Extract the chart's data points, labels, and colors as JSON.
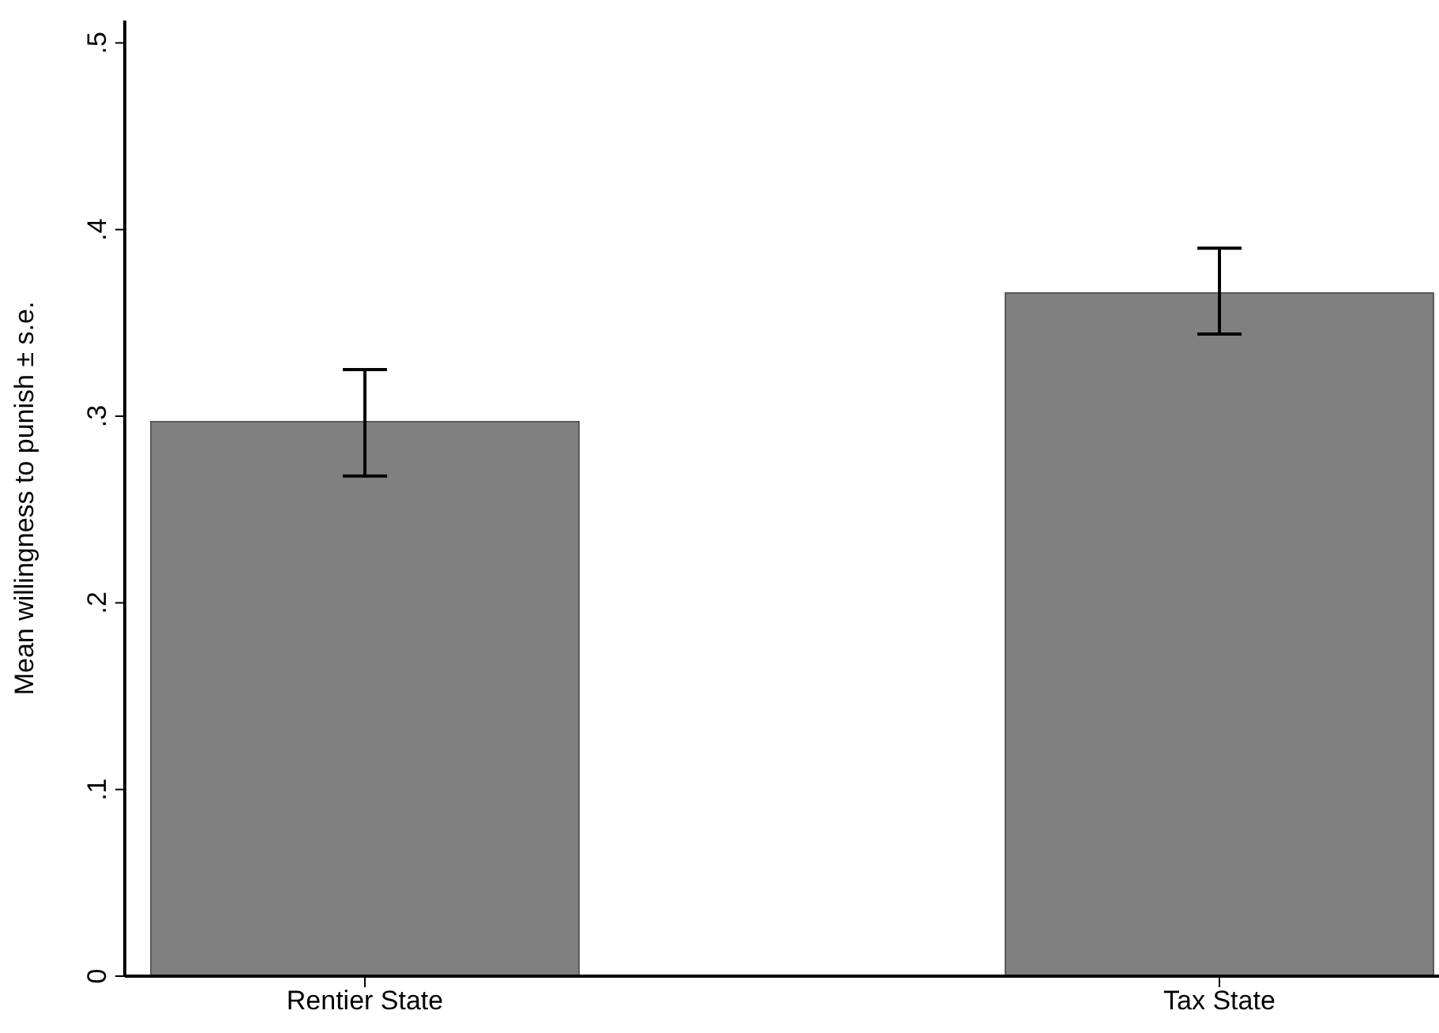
{
  "chart_data": {
    "type": "bar",
    "ylabel": "Mean willingness to punish ± s.e.",
    "categories": [
      "Rentier State",
      "Tax State"
    ],
    "values": [
      0.297,
      0.366
    ],
    "errors": [
      [
        0.268,
        0.325
      ],
      [
        0.344,
        0.39
      ]
    ],
    "color": "#808080",
    "ylim": [
      0,
      0.512
    ],
    "yticks": [
      {
        "value": 0,
        "label": "0"
      },
      {
        "value": 0.1,
        "label": ".1"
      },
      {
        "value": 0.2,
        "label": ".2"
      },
      {
        "value": 0.3,
        "label": ".3"
      },
      {
        "value": 0.4,
        "label": ".4"
      },
      {
        "value": 0.5,
        "label": ".5"
      }
    ],
    "grid": false
  }
}
